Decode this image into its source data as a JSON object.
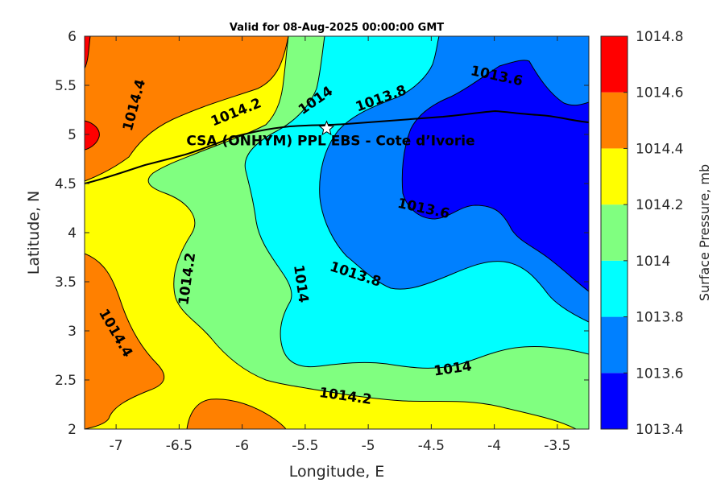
{
  "chart_data": {
    "type": "heatmap",
    "title": "Valid for 08-Aug-2025 00:00:00 GMT",
    "xlabel": "Longitude, E",
    "ylabel": "Latitude, N",
    "xlim": [
      -7.25,
      -3.25
    ],
    "ylim": [
      2,
      6
    ],
    "xticks": [
      -7,
      -6.5,
      -6,
      -5.5,
      -5,
      -4.5,
      -4,
      -3.5
    ],
    "yticks": [
      2,
      2.5,
      3,
      3.5,
      4,
      4.5,
      5,
      5.5,
      6
    ],
    "colorbar": {
      "label": "Surface Pressure, mb",
      "levels": [
        1013.4,
        1013.6,
        1013.8,
        1014,
        1014.2,
        1014.4,
        1014.6,
        1014.8
      ],
      "colors": [
        "#0000ff",
        "#0080ff",
        "#00ffff",
        "#80ff80",
        "#ffff00",
        "#ff8000",
        "#ff0000",
        "#800000"
      ]
    },
    "contour_labels": [
      {
        "text": "1014.4",
        "x": -6.86,
        "y": 5.3,
        "angle": -75
      },
      {
        "text": "1014.2",
        "x": -6.05,
        "y": 5.23,
        "angle": -22
      },
      {
        "text": "1014",
        "x": -5.42,
        "y": 5.35,
        "angle": -35
      },
      {
        "text": "1013.8",
        "x": -4.9,
        "y": 5.37,
        "angle": -20
      },
      {
        "text": "1013.6",
        "x": -3.98,
        "y": 5.6,
        "angle": 12
      },
      {
        "text": "1013.6",
        "x": -4.56,
        "y": 4.25,
        "angle": 12
      },
      {
        "text": "1013.8",
        "x": -5.1,
        "y": 3.58,
        "angle": 18
      },
      {
        "text": "1014",
        "x": -5.53,
        "y": 3.48,
        "angle": 82
      },
      {
        "text": "1014.2",
        "x": -6.44,
        "y": 3.53,
        "angle": -82
      },
      {
        "text": "1014.4",
        "x": -7.0,
        "y": 2.98,
        "angle": 60
      },
      {
        "text": "1014",
        "x": -4.33,
        "y": 2.62,
        "angle": -8
      },
      {
        "text": "1014.2",
        "x": -5.18,
        "y": 2.34,
        "angle": 8
      }
    ],
    "annotation": {
      "text": "CSA (ONHYM) PPL EBS  - Cote d’Ivorie",
      "x": -5.33,
      "y": 5.06,
      "marker": "star"
    }
  }
}
